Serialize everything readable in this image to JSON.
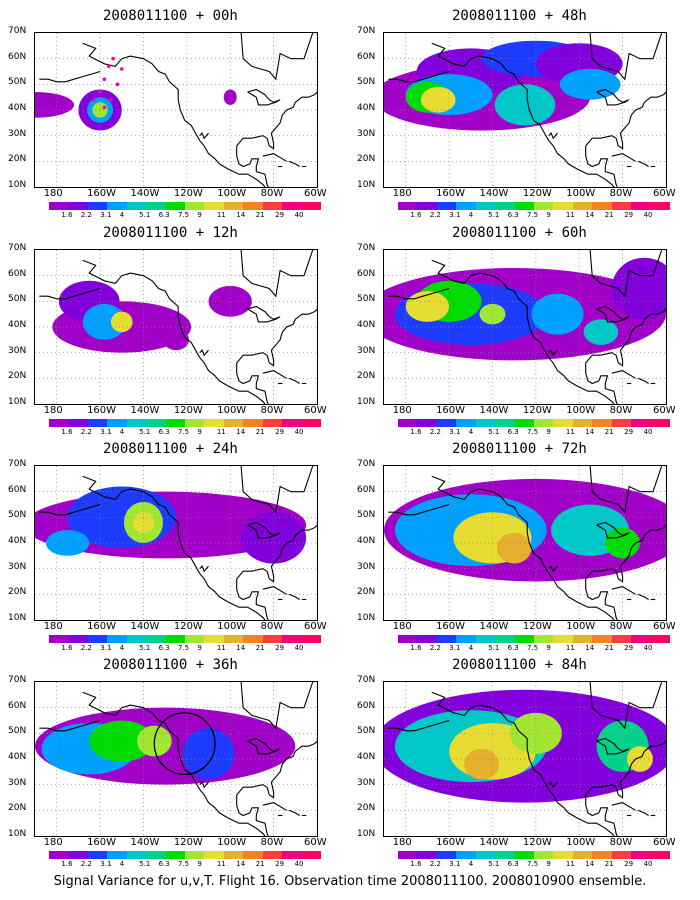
{
  "caption": "Signal Variance for u,v,T. Flight 16. Observation time 2008011100. 2008010900 ensemble.",
  "lat_labels": [
    "70N",
    "60N",
    "50N",
    "40N",
    "30N",
    "20N",
    "10N"
  ],
  "lon_labels": [
    "180",
    "160W",
    "140W",
    "120W",
    "100W",
    "80W",
    "60W"
  ],
  "colorbar": {
    "colors": [
      "#a000c8",
      "#8200dc",
      "#1e3cff",
      "#00a0ff",
      "#00c8c8",
      "#00d28c",
      "#00dc00",
      "#a0e632",
      "#e6dc32",
      "#e6af2d",
      "#f08228",
      "#fa3c3c",
      "#f00082"
    ],
    "labels": [
      "1.6",
      "2.2",
      "3.1",
      "4",
      "5.1",
      "6.3",
      "7.5",
      "9",
      "11",
      "14",
      "21",
      "29",
      "40"
    ]
  },
  "panels": [
    {
      "title": "2008011100 + 00h"
    },
    {
      "title": "2008011100 + 48h"
    },
    {
      "title": "2008011100 + 12h"
    },
    {
      "title": "2008011100 + 60h"
    },
    {
      "title": "2008011100 + 24h"
    },
    {
      "title": "2008011100 + 72h"
    },
    {
      "title": "2008011100 + 36h"
    },
    {
      "title": "2008011100 + 84h"
    }
  ]
}
